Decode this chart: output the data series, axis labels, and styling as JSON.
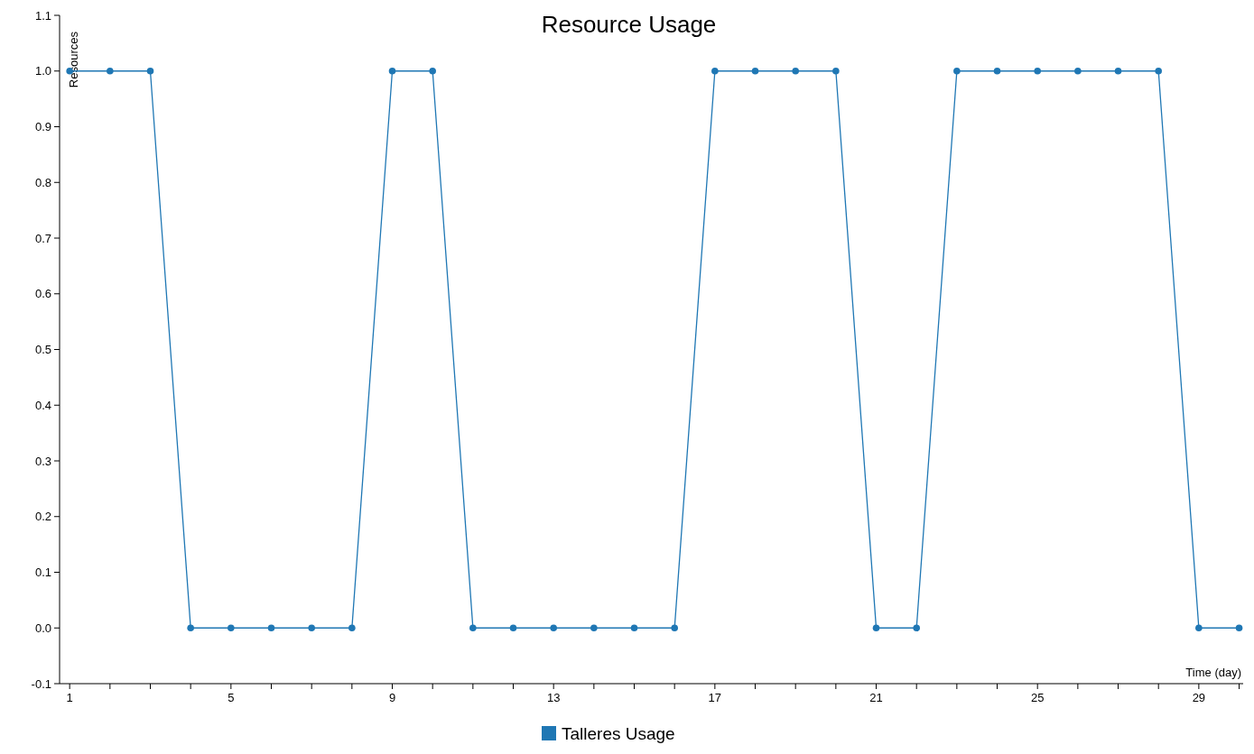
{
  "chart_data": {
    "type": "line",
    "title": "Resource Usage",
    "xlabel": "Time (day)",
    "ylabel": "Resources",
    "x": [
      1,
      2,
      3,
      4,
      5,
      6,
      7,
      8,
      9,
      10,
      11,
      12,
      13,
      14,
      15,
      16,
      17,
      18,
      19,
      20,
      21,
      22,
      23,
      24,
      25,
      26,
      27,
      28,
      29,
      30
    ],
    "series": [
      {
        "name": "Talleres Usage",
        "color": "#1f77b4",
        "values": [
          1,
          1,
          1,
          0,
          0,
          0,
          0,
          0,
          1,
          1,
          0,
          0,
          0,
          0,
          0,
          0,
          1,
          1,
          1,
          1,
          0,
          0,
          1,
          1,
          1,
          1,
          1,
          1,
          0,
          0
        ]
      }
    ],
    "xlim": [
      0.75,
      30.1
    ],
    "xticks": [
      1,
      {
        "value": 2,
        "label": null
      },
      {
        "value": 3,
        "label": null
      },
      {
        "value": 4,
        "label": null
      },
      5,
      {
        "value": 6,
        "label": null
      },
      {
        "value": 7,
        "label": null
      },
      {
        "value": 8,
        "label": null
      },
      9,
      {
        "value": 10,
        "label": null
      },
      {
        "value": 11,
        "label": null
      },
      {
        "value": 12,
        "label": null
      },
      13,
      {
        "value": 14,
        "label": null
      },
      {
        "value": 15,
        "label": null
      },
      {
        "value": 16,
        "label": null
      },
      17,
      {
        "value": 18,
        "label": null
      },
      {
        "value": 19,
        "label": null
      },
      {
        "value": 20,
        "label": null
      },
      21,
      {
        "value": 22,
        "label": null
      },
      {
        "value": 23,
        "label": null
      },
      {
        "value": 24,
        "label": null
      },
      25,
      {
        "value": 26,
        "label": null
      },
      {
        "value": 27,
        "label": null
      },
      {
        "value": 28,
        "label": null
      },
      29,
      {
        "value": 30,
        "label": null
      }
    ],
    "ylim": [
      -0.1,
      1.1
    ],
    "yticks": [
      -0.1,
      {
        "value": 0,
        "label": "0.0"
      },
      0.1,
      0.2,
      0.3,
      0.4,
      0.5,
      0.6,
      0.7,
      0.8,
      0.9,
      {
        "value": 1,
        "label": "1.0"
      },
      1.1
    ],
    "marker": "circle",
    "line_style": "solid",
    "legend": "bottom",
    "grid": false
  }
}
